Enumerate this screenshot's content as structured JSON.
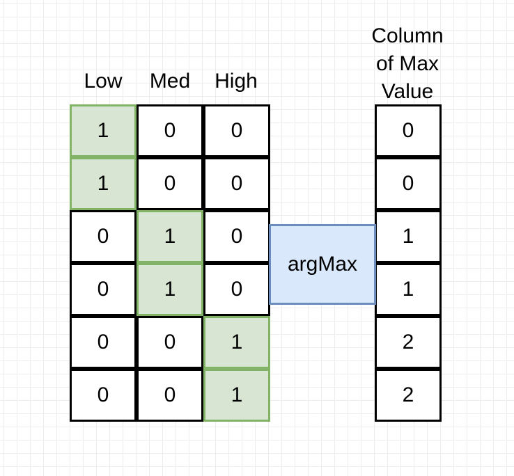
{
  "headers": [
    "Low",
    "Med",
    "High"
  ],
  "matrix": [
    [
      "1",
      "0",
      "0"
    ],
    [
      "1",
      "0",
      "0"
    ],
    [
      "0",
      "1",
      "0"
    ],
    [
      "0",
      "1",
      "0"
    ],
    [
      "0",
      "0",
      "1"
    ],
    [
      "0",
      "0",
      "1"
    ]
  ],
  "operation_label": "argMax",
  "result_title_lines": [
    "Column",
    "of Max",
    "Value"
  ],
  "result_values": [
    "0",
    "0",
    "1",
    "1",
    "2",
    "2"
  ],
  "colors": {
    "highlight_fill": "#d8e5d3",
    "highlight_border": "#82b366",
    "operation_fill": "#dae8fc",
    "operation_border": "#6c8ebf"
  }
}
